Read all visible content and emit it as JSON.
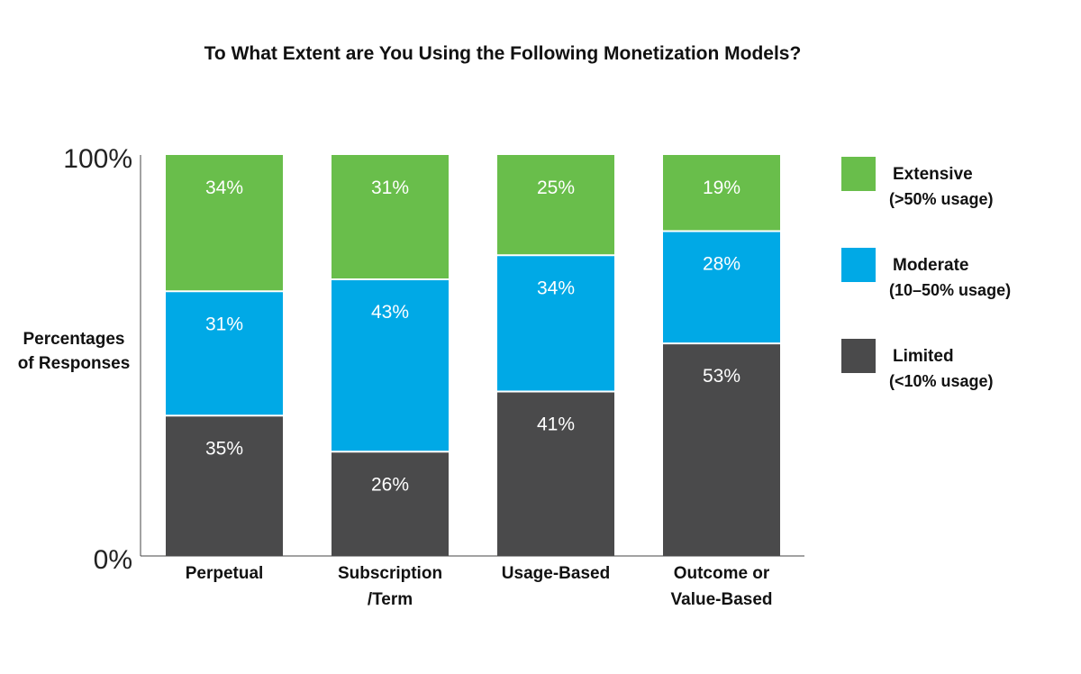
{
  "chart_data": {
    "type": "bar",
    "stacked": true,
    "title": "To What Extent are You Using the Following Monetization Models?",
    "ylabel_lines": [
      "Percentages",
      "of Responses"
    ],
    "y_ticks": [
      "100%",
      "0%"
    ],
    "ylim": [
      0,
      100
    ],
    "categories": [
      [
        "Perpetual"
      ],
      [
        "Subscription",
        "/Term"
      ],
      [
        "Usage-Based"
      ],
      [
        "Outcome or",
        "Value-Based"
      ]
    ],
    "series": [
      {
        "name": "Limited",
        "desc": "(<10% usage)",
        "color": "#4a4a4b",
        "values": [
          35,
          26,
          41,
          53
        ],
        "labels": [
          "35%",
          "26%",
          "41%",
          "53%"
        ]
      },
      {
        "name": "Moderate",
        "desc": "(10–50% usage)",
        "color": "#00a9e6",
        "values": [
          31,
          43,
          34,
          28
        ],
        "labels": [
          "31%",
          "43%",
          "34%",
          "28%"
        ]
      },
      {
        "name": "Extensive",
        "desc": "(>50% usage)",
        "color": "#69be4b",
        "values": [
          34,
          31,
          25,
          19
        ],
        "labels": [
          "34%",
          "31%",
          "25%",
          "19%"
        ]
      }
    ],
    "legend_order": [
      "Extensive",
      "Moderate",
      "Limited"
    ],
    "legend_position": "right",
    "grid": false
  }
}
